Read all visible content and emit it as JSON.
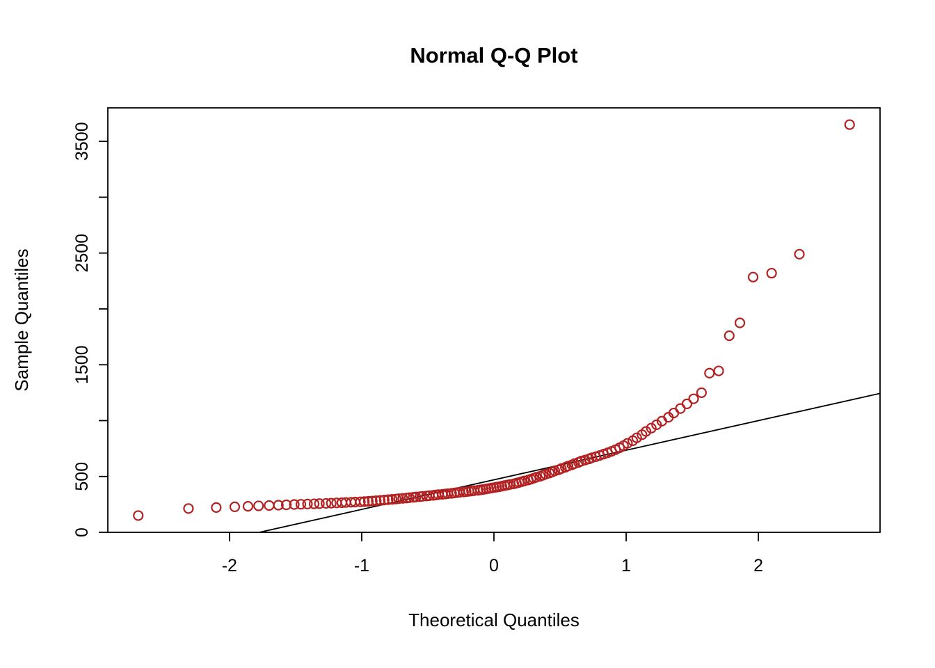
{
  "colors": {
    "background": "#FFFFFF",
    "point_stroke": "#B22222",
    "axis_and_text": "#000000",
    "reference_line": "#000000"
  },
  "chart_data": {
    "type": "scatter",
    "title": "Normal Q-Q Plot",
    "xlabel": "Theoretical Quantiles",
    "ylabel": "Sample Quantiles",
    "xlim": [
      -2.92,
      2.92
    ],
    "ylim": [
      0,
      3800
    ],
    "grid": false,
    "legend": "none",
    "x_ticks": [
      {
        "value": -2,
        "label": "-2"
      },
      {
        "value": -1,
        "label": "-1"
      },
      {
        "value": 0,
        "label": "0"
      },
      {
        "value": 1,
        "label": "1"
      },
      {
        "value": 2,
        "label": "2"
      }
    ],
    "y_ticks": [
      {
        "value": 0,
        "label": "0"
      },
      {
        "value": 500,
        "label": "500"
      },
      {
        "value": 1000,
        "label": ""
      },
      {
        "value": 1500,
        "label": "1500"
      },
      {
        "value": 2000,
        "label": ""
      },
      {
        "value": 2500,
        "label": "2500"
      },
      {
        "value": 3000,
        "label": ""
      },
      {
        "value": 3500,
        "label": "3500"
      }
    ],
    "point_color": "#B22222",
    "line_color": "#000000",
    "reference_line": {
      "intercept": 470,
      "slope": 265
    },
    "points": [
      [
        -2.69,
        150
      ],
      [
        -2.31,
        213
      ],
      [
        -2.1,
        222
      ],
      [
        -1.96,
        228
      ],
      [
        -1.86,
        233
      ],
      [
        -1.78,
        237
      ],
      [
        -1.7,
        240
      ],
      [
        -1.63,
        243
      ],
      [
        -1.57,
        246
      ],
      [
        -1.51,
        249
      ],
      [
        -1.46,
        251
      ],
      [
        -1.41,
        253
      ],
      [
        -1.36,
        255
      ],
      [
        -1.32,
        257
      ],
      [
        -1.27,
        259
      ],
      [
        -1.23,
        261
      ],
      [
        -1.19,
        263
      ],
      [
        -1.15,
        265
      ],
      [
        -1.12,
        267
      ],
      [
        -1.08,
        269
      ],
      [
        -1.05,
        271
      ],
      [
        -1.01,
        273
      ],
      [
        -0.98,
        275
      ],
      [
        -0.95,
        277
      ],
      [
        -0.92,
        280
      ],
      [
        -0.89,
        283
      ],
      [
        -0.86,
        286
      ],
      [
        -0.83,
        289
      ],
      [
        -0.8,
        292
      ],
      [
        -0.77,
        295
      ],
      [
        -0.74,
        298
      ],
      [
        -0.72,
        301
      ],
      [
        -0.69,
        304
      ],
      [
        -0.66,
        307
      ],
      [
        -0.64,
        310
      ],
      [
        -0.61,
        313
      ],
      [
        -0.59,
        316
      ],
      [
        -0.56,
        319
      ],
      [
        -0.54,
        322
      ],
      [
        -0.51,
        325
      ],
      [
        -0.49,
        328
      ],
      [
        -0.46,
        331
      ],
      [
        -0.44,
        334
      ],
      [
        -0.42,
        337
      ],
      [
        -0.39,
        340
      ],
      [
        -0.37,
        343
      ],
      [
        -0.35,
        346
      ],
      [
        -0.32,
        349
      ],
      [
        -0.3,
        352
      ],
      [
        -0.28,
        355
      ],
      [
        -0.26,
        358
      ],
      [
        -0.23,
        361
      ],
      [
        -0.21,
        364
      ],
      [
        -0.19,
        367
      ],
      [
        -0.17,
        370
      ],
      [
        -0.15,
        373
      ],
      [
        -0.12,
        376
      ],
      [
        -0.1,
        380
      ],
      [
        -0.08,
        384
      ],
      [
        -0.06,
        388
      ],
      [
        -0.04,
        392
      ],
      [
        -0.02,
        396
      ],
      [
        0.0,
        400
      ],
      [
        0.02,
        404
      ],
      [
        0.04,
        408
      ],
      [
        0.06,
        413
      ],
      [
        0.08,
        418
      ],
      [
        0.1,
        423
      ],
      [
        0.12,
        428
      ],
      [
        0.15,
        434
      ],
      [
        0.17,
        440
      ],
      [
        0.19,
        446
      ],
      [
        0.21,
        453
      ],
      [
        0.23,
        460
      ],
      [
        0.26,
        468
      ],
      [
        0.28,
        476
      ],
      [
        0.3,
        484
      ],
      [
        0.32,
        493
      ],
      [
        0.35,
        502
      ],
      [
        0.37,
        511
      ],
      [
        0.39,
        520
      ],
      [
        0.42,
        530
      ],
      [
        0.44,
        540
      ],
      [
        0.46,
        550
      ],
      [
        0.49,
        560
      ],
      [
        0.51,
        571
      ],
      [
        0.54,
        582
      ],
      [
        0.56,
        593
      ],
      [
        0.59,
        604
      ],
      [
        0.61,
        615
      ],
      [
        0.64,
        626
      ],
      [
        0.66,
        637
      ],
      [
        0.69,
        647
      ],
      [
        0.72,
        657
      ],
      [
        0.74,
        667
      ],
      [
        0.77,
        677
      ],
      [
        0.8,
        688
      ],
      [
        0.83,
        700
      ],
      [
        0.86,
        712
      ],
      [
        0.89,
        725
      ],
      [
        0.92,
        740
      ],
      [
        0.95,
        757
      ],
      [
        0.98,
        776
      ],
      [
        1.01,
        797
      ],
      [
        1.05,
        820
      ],
      [
        1.08,
        846
      ],
      [
        1.12,
        874
      ],
      [
        1.15,
        903
      ],
      [
        1.19,
        933
      ],
      [
        1.23,
        963
      ],
      [
        1.27,
        995
      ],
      [
        1.32,
        1030
      ],
      [
        1.36,
        1068
      ],
      [
        1.41,
        1108
      ],
      [
        1.46,
        1150
      ],
      [
        1.51,
        1195
      ],
      [
        1.57,
        1250
      ],
      [
        1.63,
        1425
      ],
      [
        1.7,
        1445
      ],
      [
        1.78,
        1760
      ],
      [
        1.86,
        1875
      ],
      [
        1.96,
        2285
      ],
      [
        2.1,
        2320
      ],
      [
        2.31,
        2490
      ],
      [
        2.69,
        3650
      ]
    ]
  }
}
